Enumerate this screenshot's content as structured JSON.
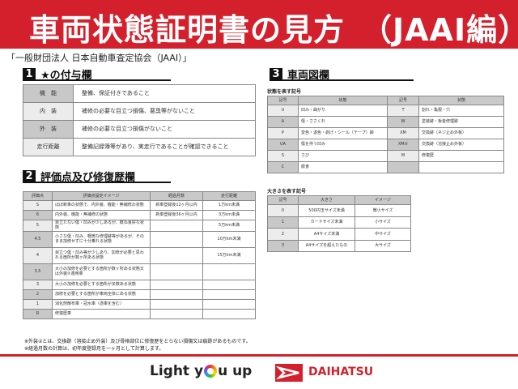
{
  "header": {
    "title": "車両状態証明書の見方　（JAAI編）",
    "subtitle": "「一般財団法人 日本自動車査定協会（JAAI）」"
  },
  "section1": {
    "num": "1",
    "title": "★の付与欄",
    "rows": [
      {
        "key": "機　能",
        "value": "整備、保証付きであること"
      },
      {
        "key": "内　装",
        "value": "補修の必要な目立つ損傷、悪臭等がないこと"
      },
      {
        "key": "外　装",
        "value": "補修の必要な目立つ損傷がないこと"
      },
      {
        "key": "走行距離",
        "value": "整備記録簿等があり、実走行であることが確認できること"
      }
    ]
  },
  "section2": {
    "num": "2",
    "title": "評価点及び修復歴欄",
    "headers": [
      "評価点",
      "評価点設定イメージ",
      "経過月数",
      "走行距離"
    ],
    "rows": [
      [
        "S",
        "ほぼ新車の状態で、内外装、機能・無補修の状態",
        "新車登録後12ヶ月以内",
        "1万km未満"
      ],
      [
        "6",
        "内外装、機能・無補修の状態",
        "新車登録後36ヶ月以内",
        "3万km未満"
      ],
      [
        "5",
        "目立たない傷・凹みが少しあるが、概ね良好な状態",
        "",
        "5万km未満"
      ],
      [
        "4.5",
        "小さな傷・凹み、軽微な修理跡等があるが、そのまま加修せずに十分乗れる状態",
        "",
        "10万km未満"
      ],
      [
        "4",
        "目立つ傷・凹み等が少しあり、加修が必要と思われる箇所が数ヶ所ある状態",
        "",
        "15万km未満"
      ],
      [
        "3.5",
        "大小の加修を必要とする箇所が数ヶ所ある状態又は外装②適用車",
        "",
        ""
      ],
      [
        "3",
        "大小の加修を必要とする箇所が多数ある状態",
        "",
        ""
      ],
      [
        "2",
        "加修を必要とする箇所が車両全体にある状態",
        "",
        ""
      ],
      [
        "1",
        "消化剤散布車・冠水車（憑車を含む）",
        "",
        ""
      ],
      [
        "R",
        "修復歴車",
        "",
        ""
      ]
    ]
  },
  "notes": [
    "※外装②とは、交換跡（溶接止め外装）及び骨格部位に修復歴をとらない損傷又は痕跡があるものです。",
    "※経過月数の計算は、初年度登録月を一ヶ月として計算します。"
  ],
  "section3": {
    "num": "3",
    "title": "車両図欄",
    "state_caption": "状態を表す記号",
    "state_headers": [
      "記号",
      "状態",
      "記号",
      "状態"
    ],
    "state_rows": [
      [
        "U",
        "凹み・曲がり",
        "T",
        "割れ・亀裂・穴"
      ],
      [
        "A",
        "傷・ささくれ",
        "W",
        "塗装跡・板金修理跡"
      ],
      [
        "P",
        "変色・退色・剥げ・シール（テープ）跡",
        "XM",
        "交換跡（ネジ止め外板）"
      ],
      [
        "UA",
        "傷を伴う凹み",
        "XM②",
        "交換跡（溶接止め外板）"
      ],
      [
        "S",
        "さび",
        "M",
        "修復歴"
      ],
      [
        "C",
        "腐食",
        "",
        ""
      ]
    ],
    "size_caption": "大きさを表す記号",
    "size_headers": [
      "記号",
      "大きさ",
      "イメージ"
    ],
    "size_rows": [
      [
        "0",
        "500円玉サイズ未満",
        "微小サイズ"
      ],
      [
        "1",
        "カードサイズ未満",
        "小サイズ"
      ],
      [
        "2",
        "A4サイズ未満",
        "中サイズ"
      ],
      [
        "3",
        "A4サイズを超えたもの",
        "大サイズ"
      ]
    ]
  },
  "footer": {
    "slogan_pre": "Light y",
    "slogan_post": "u up",
    "brand": "DAIHATSU"
  },
  "colors": {
    "brand_red": "#d4202c"
  }
}
